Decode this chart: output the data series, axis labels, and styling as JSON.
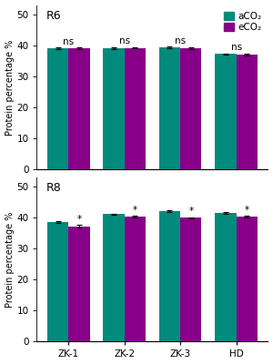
{
  "R6": {
    "label": "R6",
    "categories": [
      "ZK-1",
      "ZK-2",
      "ZK-3",
      "HD"
    ],
    "aCO2": [
      39.0,
      39.0,
      39.3,
      37.2
    ],
    "eCO2": [
      39.1,
      39.2,
      39.0,
      37.0
    ],
    "aCO2_err": [
      0.25,
      0.25,
      0.25,
      0.25
    ],
    "eCO2_err": [
      0.25,
      0.25,
      0.25,
      0.4
    ],
    "sig": [
      "ns",
      "ns",
      "ns",
      "ns"
    ],
    "sig_on_eco2": [
      false,
      false,
      false,
      false
    ]
  },
  "R8": {
    "label": "R8",
    "categories": [
      "ZK-1",
      "ZK-2",
      "ZK-3",
      "HD"
    ],
    "aCO2": [
      38.6,
      41.1,
      42.1,
      41.5
    ],
    "eCO2": [
      37.2,
      40.3,
      39.9,
      40.3
    ],
    "aCO2_err": [
      0.25,
      0.25,
      0.25,
      0.25
    ],
    "eCO2_err": [
      0.4,
      0.25,
      0.25,
      0.25
    ],
    "sig": [
      "*",
      "*",
      "*",
      "*"
    ],
    "sig_on_eco2": [
      true,
      true,
      true,
      true
    ]
  },
  "aCO2_color": "#008b7d",
  "eCO2_color": "#880088",
  "ylabel": "Protein percentage %",
  "ylim": [
    0,
    53
  ],
  "yticks": [
    0,
    10,
    20,
    30,
    40,
    50
  ],
  "bar_width": 0.38,
  "legend_labels": [
    "aCO₂",
    "eCO₂"
  ],
  "background_color": "#ffffff"
}
